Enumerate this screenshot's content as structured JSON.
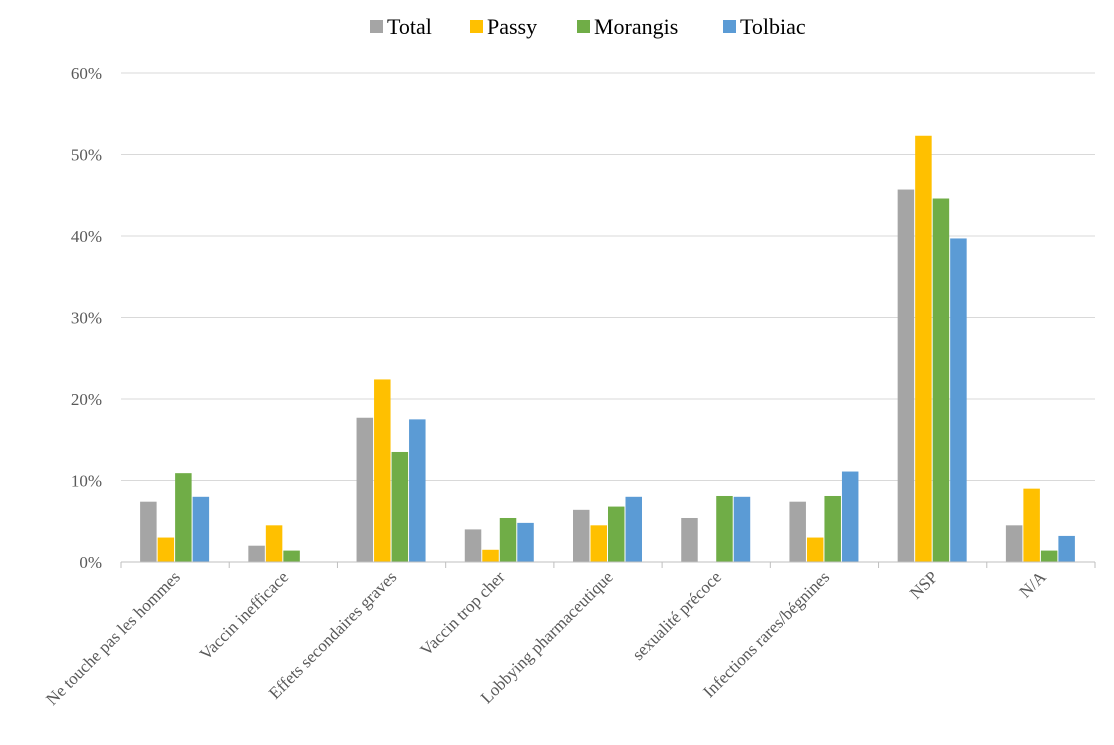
{
  "chart_data": {
    "type": "bar",
    "categories": [
      "Ne touche pas les hommes",
      "Vaccin inefficace",
      "Effets secondaires graves",
      "Vaccin trop cher",
      "Lobbying pharmaceutique",
      "sexualité précoce",
      "Infections rares/bégnines",
      "NSP",
      "N/A"
    ],
    "series": [
      {
        "name": "Total",
        "color": "#A5A5A5",
        "values": [
          7.4,
          2.0,
          17.7,
          4.0,
          6.4,
          5.4,
          7.4,
          45.7,
          4.5
        ]
      },
      {
        "name": "Passy",
        "color": "#FFC000",
        "values": [
          3.0,
          4.5,
          22.4,
          1.5,
          4.5,
          0,
          3.0,
          52.3,
          9.0
        ]
      },
      {
        "name": "Morangis",
        "color": "#70AD47",
        "values": [
          10.9,
          1.4,
          13.5,
          5.4,
          6.8,
          8.1,
          8.1,
          44.6,
          1.4
        ]
      },
      {
        "name": "Tolbiac",
        "color": "#5B9BD5",
        "values": [
          8.0,
          0,
          17.5,
          4.8,
          8.0,
          8.0,
          11.1,
          39.7,
          3.2
        ]
      }
    ],
    "ylim": [
      0,
      60
    ],
    "yticks": [
      "0%",
      "10%",
      "20%",
      "30%",
      "40%",
      "50%",
      "60%"
    ],
    "ytick_values": [
      0,
      10,
      20,
      30,
      40,
      50,
      60
    ],
    "grid": true,
    "legend_position": "top-center"
  }
}
